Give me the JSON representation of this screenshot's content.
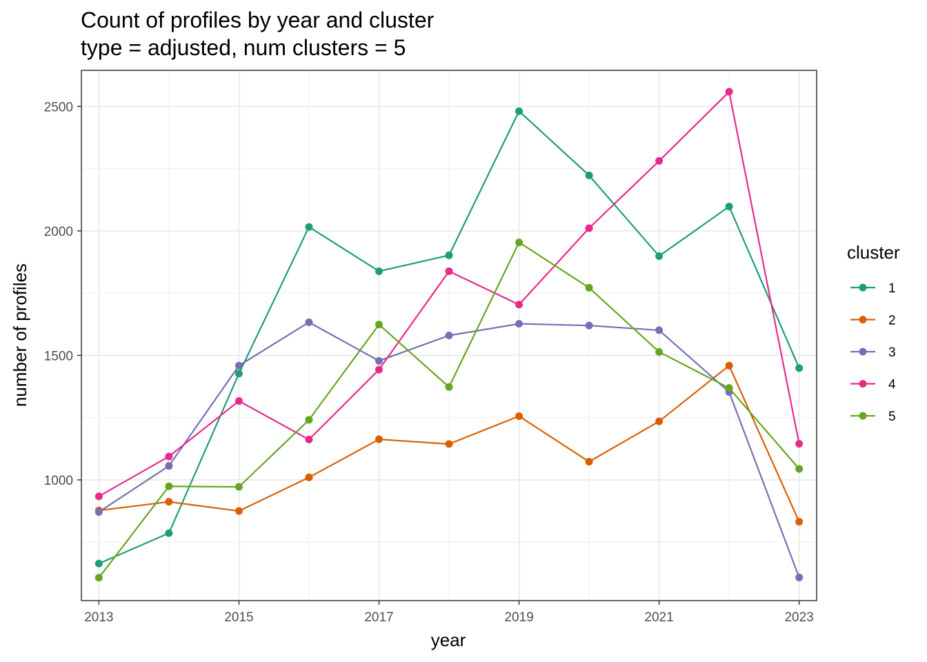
{
  "chart_data": {
    "type": "line",
    "title": "Count of profiles by year and cluster",
    "subtitle": "type = adjusted, num clusters = 5",
    "xlabel": "year",
    "ylabel": "number of profiles",
    "x": [
      2013,
      2014,
      2015,
      2016,
      2017,
      2018,
      2019,
      2020,
      2021,
      2022,
      2023
    ],
    "x_ticks": [
      2013,
      2015,
      2017,
      2019,
      2021,
      2023
    ],
    "x_tick_labels": [
      "2013",
      "2015",
      "2017",
      "2019",
      "2021",
      "2023"
    ],
    "y_ticks": [
      1000,
      1500,
      2000,
      2500
    ],
    "y_tick_labels": [
      "1000",
      "1500",
      "2000",
      "2500"
    ],
    "xlim": [
      2012.75,
      2023.25
    ],
    "ylim": [
      515,
      2645
    ],
    "grid": true,
    "legend": {
      "title": "cluster",
      "position": "right"
    },
    "series": [
      {
        "name": "1",
        "color": "#1b9e77",
        "values": [
          664,
          786,
          1427,
          2016,
          1838,
          1902,
          2481,
          2223,
          1899,
          2098,
          1449
        ]
      },
      {
        "name": "2",
        "color": "#d95f02",
        "values": [
          877,
          912,
          875,
          1010,
          1163,
          1144,
          1256,
          1073,
          1235,
          1459,
          832
        ]
      },
      {
        "name": "3",
        "color": "#7570b3",
        "values": [
          871,
          1056,
          1459,
          1633,
          1478,
          1580,
          1627,
          1620,
          1601,
          1353,
          608
        ]
      },
      {
        "name": "4",
        "color": "#e7298a",
        "values": [
          934,
          1094,
          1317,
          1162,
          1443,
          1838,
          1704,
          2011,
          2281,
          2559,
          1145
        ]
      },
      {
        "name": "5",
        "color": "#66a61e",
        "values": [
          607,
          974,
          972,
          1241,
          1624,
          1373,
          1954,
          1772,
          1514,
          1369,
          1044
        ]
      }
    ]
  }
}
